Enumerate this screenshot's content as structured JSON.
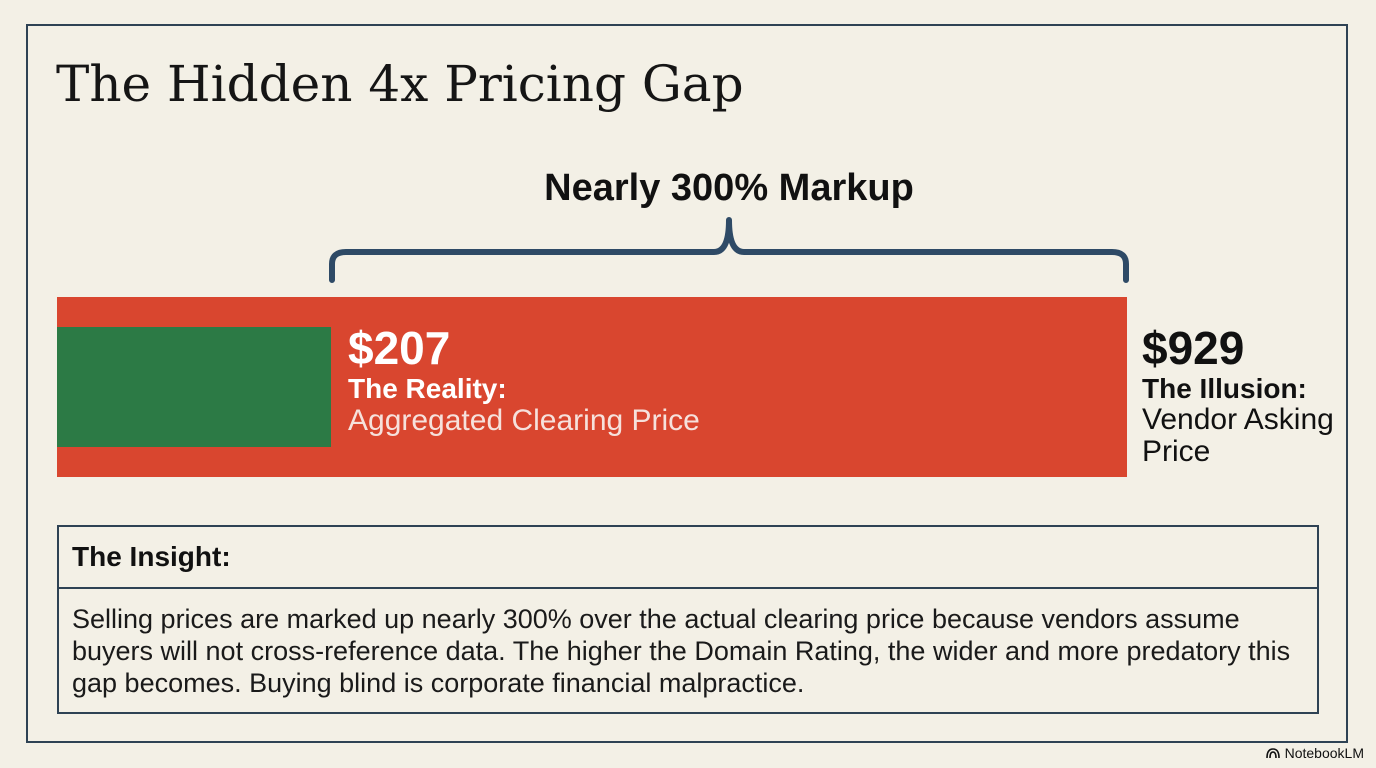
{
  "title": "The Hidden 4x Pricing Gap",
  "chart_data": {
    "type": "bar",
    "orientation": "horizontal",
    "bars": [
      {
        "name": "The Reality:",
        "description": "Aggregated Clearing Price",
        "value": 207,
        "label": "$207",
        "color": "#2c7a45"
      },
      {
        "name": "The Illusion:",
        "description": "Vendor Asking Price",
        "value": 929,
        "label": "$929",
        "color": "#d9462f"
      }
    ],
    "annotation": "Nearly 300% Markup",
    "unit": "USD"
  },
  "insight": {
    "heading": "The Insight:",
    "body": "Selling prices are marked up nearly 300% over the actual clearing price because vendors assume buyers will not cross-reference data. The higher the Domain Rating, the wider and more predatory this gap becomes. Buying blind is corporate financial malpractice."
  },
  "branding": {
    "label": "NotebookLM",
    "icon": "notebooklm-logo-icon"
  },
  "colors": {
    "background": "#f3f0e6",
    "border": "#2e4254",
    "accent_red": "#d9462f",
    "accent_green": "#2c7a45"
  }
}
